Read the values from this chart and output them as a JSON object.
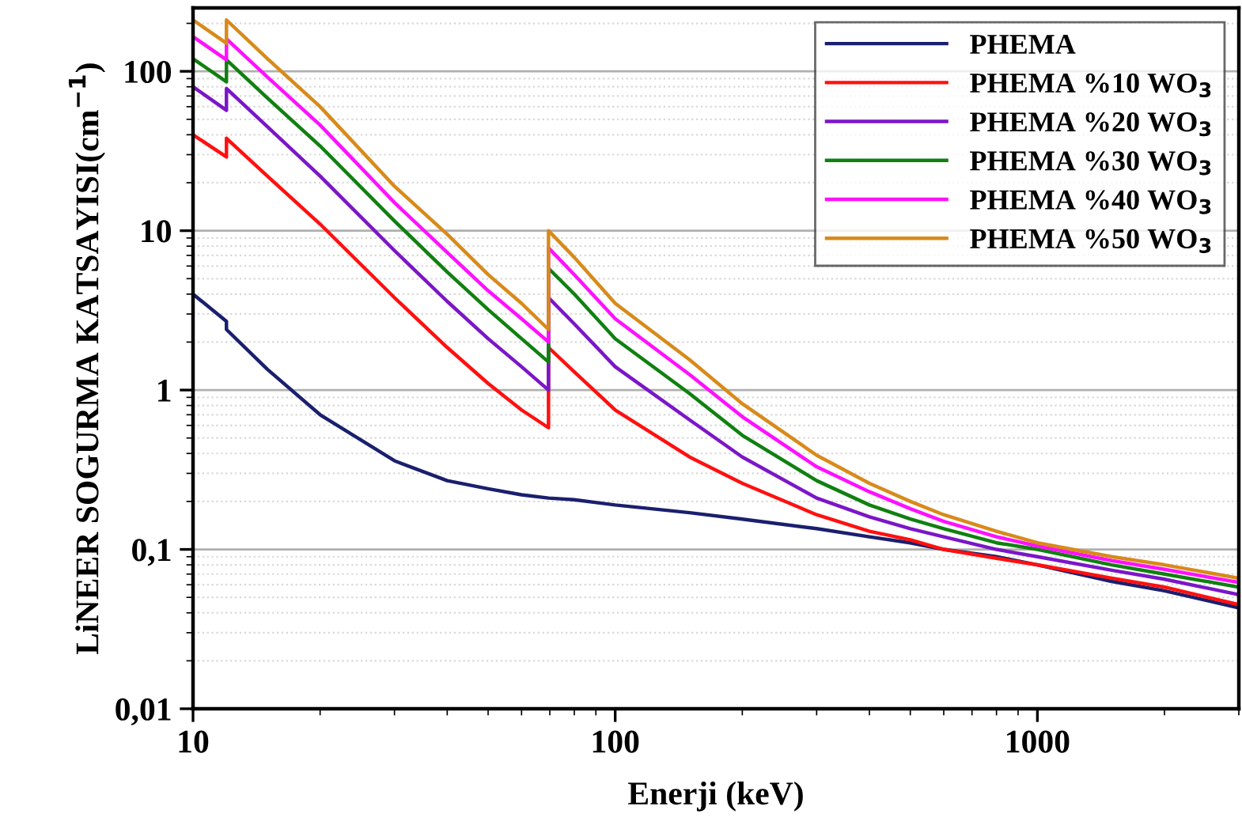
{
  "chart_data": {
    "type": "line",
    "xlabel": "Enerji (keV)",
    "ylabel": "LiNEER SOGURMA KATSAYISI(cm$^{−1}$)",
    "log": "xy",
    "grid": "y",
    "legend": "top right",
    "line_style": "solid",
    "marker": "none",
    "xlim": [
      10,
      3000
    ],
    "xticks": [
      10,
      100,
      1000
    ],
    "ylim": [
      0.01,
      250
    ],
    "yticks": [
      {
        "value": 0.01,
        "label": "0,01"
      },
      {
        "value": 0.1,
        "label": "0,1"
      },
      1,
      10,
      100
    ],
    "x": [
      10,
      12,
      12,
      15,
      20,
      30,
      40,
      50,
      60,
      69.5,
      69.5,
      80,
      100,
      150,
      200,
      300,
      400,
      500,
      600,
      800,
      1000,
      1500,
      2000,
      3000
    ],
    "series": [
      {
        "name": "PHEMA",
        "color": "#1a1f6e",
        "values": [
          4.0,
          2.7,
          2.4,
          1.35,
          0.7,
          0.36,
          0.27,
          0.24,
          0.22,
          0.21,
          0.21,
          0.205,
          0.19,
          0.17,
          0.155,
          0.135,
          0.12,
          0.11,
          0.1,
          0.09,
          0.08,
          0.063,
          0.055,
          0.043
        ]
      },
      {
        "name": "PHEMA %10 WO$_{3}$",
        "color": "#ff1010",
        "values": [
          40,
          29,
          38,
          22,
          11,
          3.8,
          1.85,
          1.1,
          0.75,
          0.58,
          1.85,
          1.3,
          0.75,
          0.38,
          0.26,
          0.165,
          0.13,
          0.115,
          0.1,
          0.088,
          0.08,
          0.066,
          0.058,
          0.045
        ]
      },
      {
        "name": "PHEMA %20 WO$_{3}$",
        "color": "#7b16c8",
        "values": [
          80,
          57,
          78,
          45,
          22,
          7.5,
          3.6,
          2.1,
          1.4,
          1.0,
          3.8,
          2.6,
          1.4,
          0.65,
          0.38,
          0.21,
          0.16,
          0.135,
          0.12,
          0.1,
          0.09,
          0.074,
          0.065,
          0.052
        ]
      },
      {
        "name": "PHEMA %30 WO$_{3}$",
        "color": "#108010",
        "values": [
          120,
          86,
          118,
          68,
          34,
          11.5,
          5.5,
          3.2,
          2.1,
          1.5,
          5.8,
          4.0,
          2.1,
          0.95,
          0.52,
          0.27,
          0.19,
          0.155,
          0.135,
          0.11,
          0.1,
          0.08,
          0.07,
          0.058
        ]
      },
      {
        "name": "PHEMA %40 WO$_{3}$",
        "color": "#ff10ff",
        "values": [
          165,
          118,
          160,
          92,
          46,
          15,
          7.3,
          4.2,
          2.8,
          2.0,
          7.8,
          5.3,
          2.8,
          1.25,
          0.68,
          0.33,
          0.23,
          0.18,
          0.15,
          0.12,
          0.105,
          0.085,
          0.075,
          0.062
        ]
      },
      {
        "name": "PHEMA %50 WO$_{3}$",
        "color": "#d88a1a",
        "values": [
          210,
          150,
          210,
          120,
          60,
          19,
          9.5,
          5.3,
          3.5,
          2.4,
          10,
          6.8,
          3.5,
          1.55,
          0.82,
          0.39,
          0.26,
          0.2,
          0.165,
          0.13,
          0.11,
          0.09,
          0.08,
          0.066
        ]
      }
    ]
  }
}
